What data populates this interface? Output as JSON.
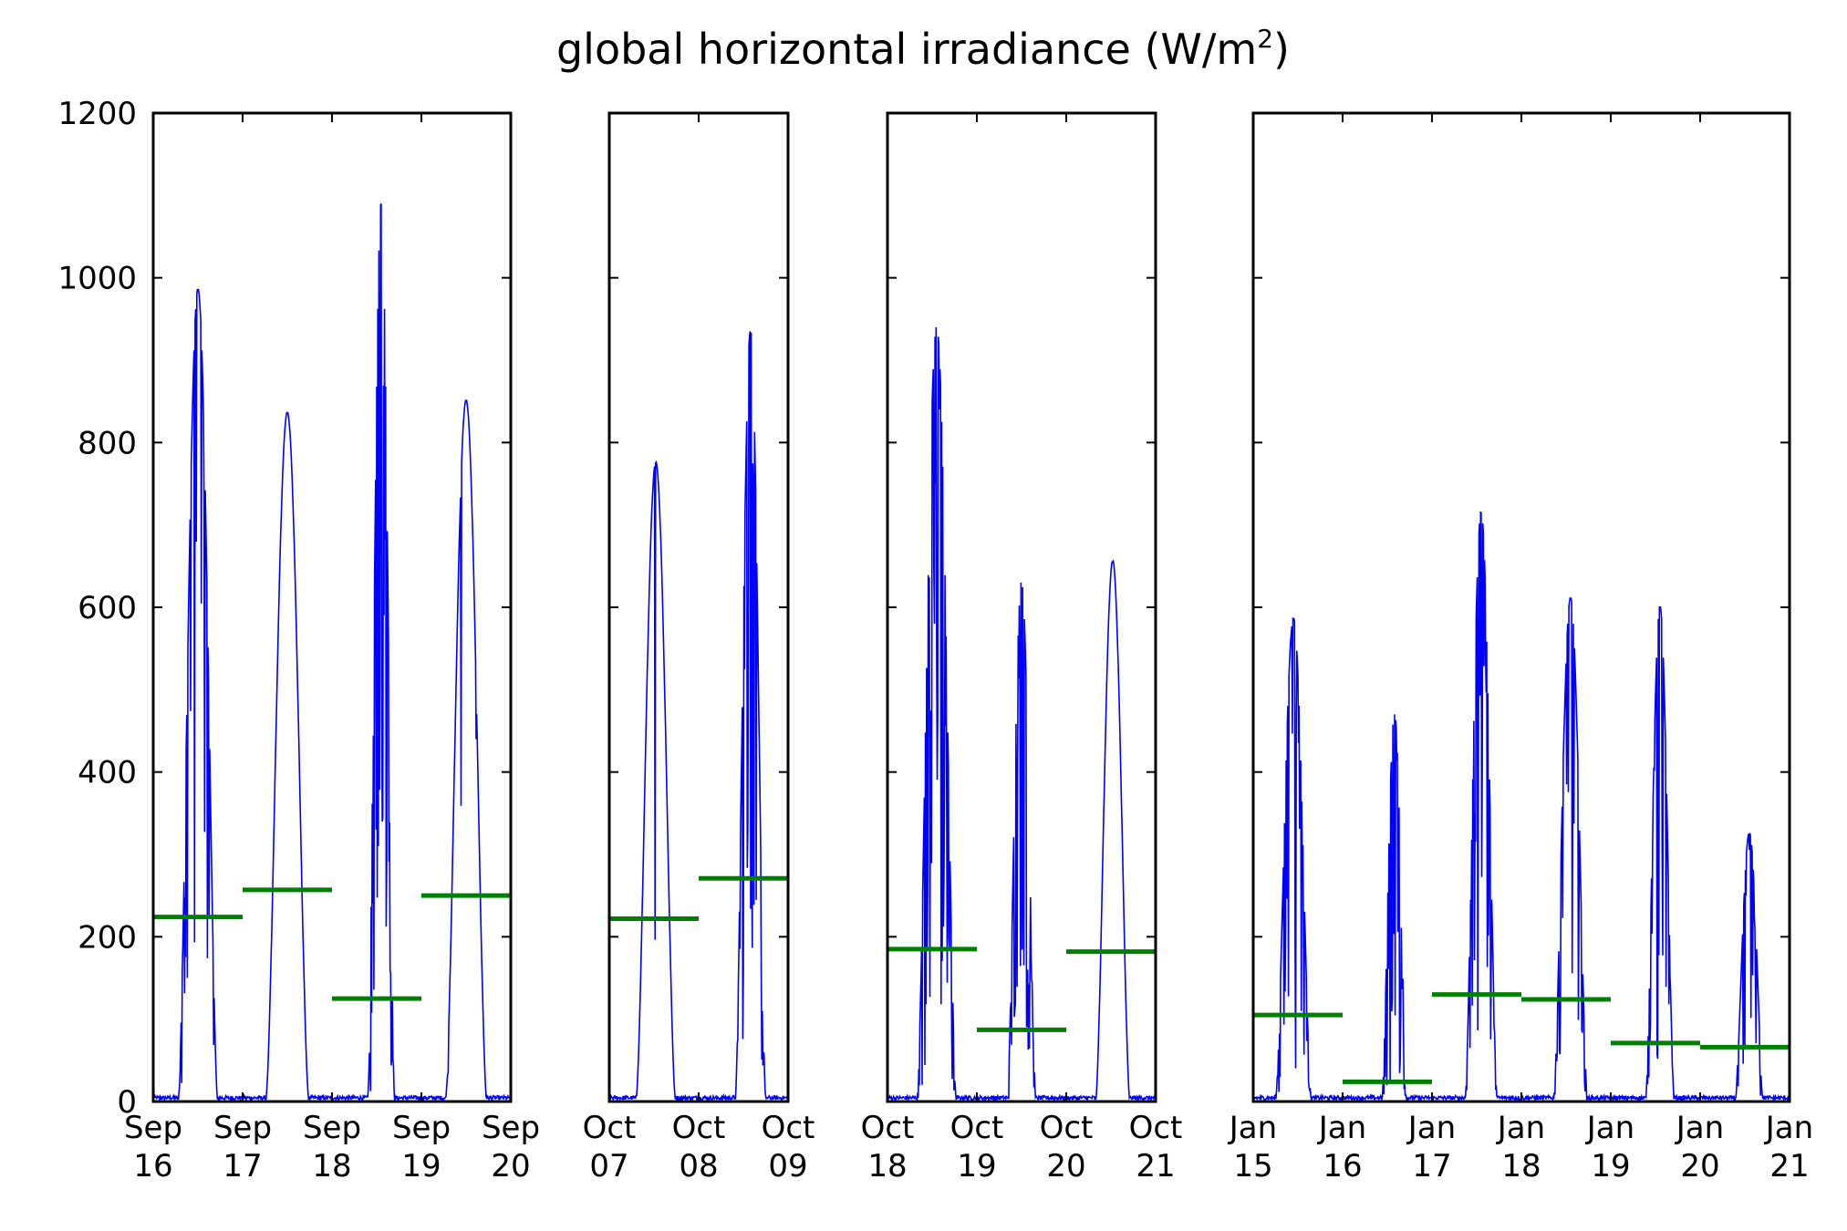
{
  "chart_data": {
    "type": "line",
    "title": "global horizontal irradiance (W/m²)",
    "title_main": "global horizontal irradiance (W/m",
    "title_sup": "2",
    "title_close": ")",
    "xlabel": "",
    "ylabel": "",
    "ylim": [
      0,
      1200
    ],
    "y_ticks": [
      0,
      200,
      400,
      600,
      800,
      1000,
      1200
    ],
    "y_tick_labels": [
      "0",
      "200",
      "400",
      "600",
      "800",
      "1000",
      "1200"
    ],
    "grid": false,
    "legend": "none",
    "colors": {
      "irradiance_line": "#0000ff",
      "daily_mean_line": "#008000"
    },
    "panels": [
      {
        "date_range": [
          "2013-09-16",
          "2013-09-20"
        ],
        "x_ticks": [
          "Sep 16",
          "Sep 17",
          "Sep 18",
          "Sep 19",
          "Sep 20"
        ],
        "daily_means": [
          224,
          257,
          125,
          250
        ],
        "daily_peaks": [
          985,
          835,
          1090,
          850
        ],
        "day_profiles": [
          {
            "center": 0.5,
            "half_width": 0.22,
            "peak": 985,
            "noise": 0.35
          },
          {
            "center": 0.5,
            "half_width": 0.24,
            "peak": 835,
            "noise": 0.0
          },
          {
            "center": 0.55,
            "half_width": 0.15,
            "peak": 1090,
            "noise": 0.75
          },
          {
            "center": 0.5,
            "half_width": 0.23,
            "peak": 850,
            "noise": 0.05
          }
        ]
      },
      {
        "date_range": [
          "2013-10-07",
          "2013-10-09"
        ],
        "x_ticks": [
          "Oct 07",
          "Oct 08",
          "Oct 09"
        ],
        "daily_means": [
          222,
          271
        ],
        "daily_peaks": [
          775,
          935
        ],
        "day_profiles": [
          {
            "center": 0.52,
            "half_width": 0.22,
            "peak": 775,
            "noise": 0.03
          },
          {
            "center": 0.58,
            "half_width": 0.17,
            "peak": 935,
            "noise": 0.45
          }
        ]
      },
      {
        "date_range": [
          "2013-10-18",
          "2013-10-21"
        ],
        "x_ticks": [
          "Oct 18",
          "Oct 19",
          "Oct 20",
          "Oct 21"
        ],
        "daily_means": [
          185,
          87,
          182
        ],
        "daily_peaks": [
          940,
          630,
          655
        ],
        "day_profiles": [
          {
            "center": 0.55,
            "half_width": 0.22,
            "peak": 940,
            "noise": 0.7
          },
          {
            "center": 0.5,
            "half_width": 0.16,
            "peak": 630,
            "noise": 0.7
          },
          {
            "center": 0.52,
            "half_width": 0.19,
            "peak": 655,
            "noise": 0.0
          }
        ]
      },
      {
        "date_range": [
          "2014-01-15",
          "2014-01-21"
        ],
        "x_ticks": [
          "Jan 15",
          "Jan 16",
          "Jan 17",
          "Jan 18",
          "Jan 19",
          "Jan 20",
          "Jan 21"
        ],
        "daily_means": [
          105,
          24,
          130,
          124,
          71,
          66
        ],
        "daily_peaks": [
          585,
          470,
          715,
          610,
          600,
          325
        ],
        "day_profiles": [
          {
            "center": 0.45,
            "half_width": 0.2,
            "peak": 585,
            "noise": 0.4
          },
          {
            "center": 0.58,
            "half_width": 0.14,
            "peak": 470,
            "noise": 0.9
          },
          {
            "center": 0.55,
            "half_width": 0.18,
            "peak": 715,
            "noise": 0.45
          },
          {
            "center": 0.55,
            "half_width": 0.19,
            "peak": 610,
            "noise": 0.5
          },
          {
            "center": 0.55,
            "half_width": 0.16,
            "peak": 600,
            "noise": 0.55
          },
          {
            "center": 0.55,
            "half_width": 0.16,
            "peak": 325,
            "noise": 0.5
          }
        ]
      }
    ]
  }
}
